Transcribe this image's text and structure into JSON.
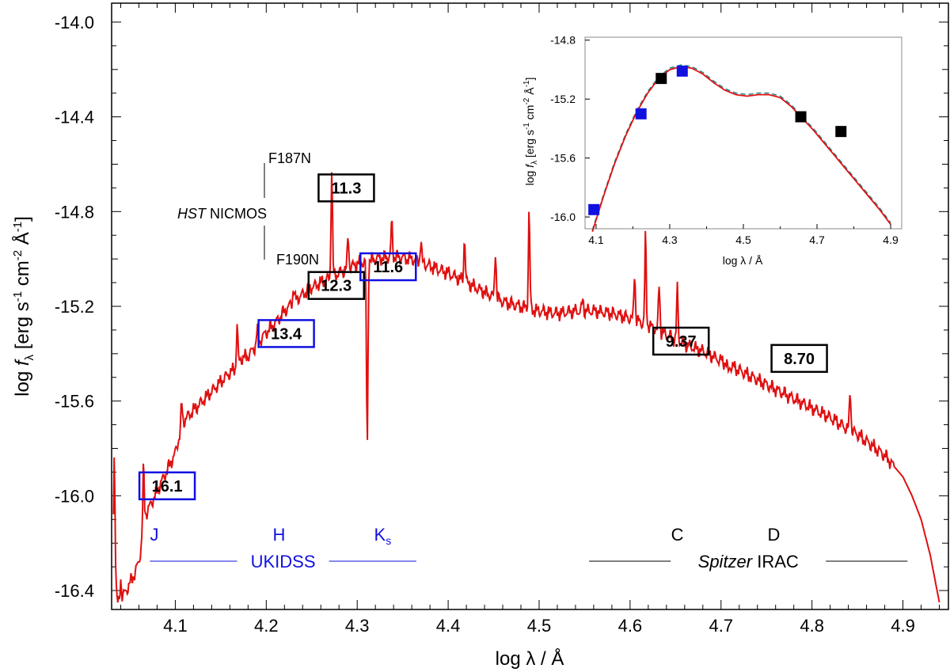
{
  "chart_data": {
    "type": "line",
    "title": "",
    "xlabel": "log λ / Å",
    "ylabel": "log fλ [erg s⁻¹ cm⁻² Å⁻¹]",
    "ylabel_parts": {
      "a": "log ",
      "b": "f",
      "c": "λ",
      "d": " [erg s",
      "e": "-1",
      "f": " cm",
      "g": "-2",
      "h": " Å",
      "i": "-1",
      "j": "]"
    },
    "xlim": [
      4.03,
      4.95
    ],
    "ylim": [
      -16.48,
      -13.92
    ],
    "x_ticks": [
      "4.1",
      "4.2",
      "4.3",
      "4.4",
      "4.5",
      "4.6",
      "4.7",
      "4.8",
      "4.9"
    ],
    "x_tick_values": [
      4.1,
      4.2,
      4.3,
      4.4,
      4.5,
      4.6,
      4.7,
      4.8,
      4.9
    ],
    "y_ticks": [
      "-14.0",
      "-14.4",
      "-14.8",
      "-15.2",
      "-15.6",
      "-16.0",
      "-16.4"
    ],
    "y_tick_values": [
      -14.0,
      -14.4,
      -14.8,
      -15.2,
      -15.6,
      -16.0,
      -16.4
    ],
    "colors": {
      "model": "#e01010",
      "ukidss": "#1010e0",
      "irac": "#000000",
      "dash": "#2a8a8a"
    },
    "series": [
      {
        "name": "model spectrum",
        "x": [
          4.032,
          4.035,
          4.037,
          4.039,
          4.041,
          4.043,
          4.046,
          4.05,
          4.055,
          4.06,
          4.063,
          4.065,
          4.067,
          4.07,
          4.075,
          4.08,
          4.09,
          4.1,
          4.105,
          4.107,
          4.11,
          4.12,
          4.13,
          4.14,
          4.15,
          4.16,
          4.168,
          4.17,
          4.172,
          4.18,
          4.19,
          4.2,
          4.21,
          4.22,
          4.23,
          4.24,
          4.25,
          4.26,
          4.27,
          4.28,
          4.29,
          4.3,
          4.32,
          4.34,
          4.36,
          4.38,
          4.4,
          4.42,
          4.44,
          4.46,
          4.48,
          4.5,
          4.52,
          4.54,
          4.56,
          4.58,
          4.6,
          4.62,
          4.64,
          4.66,
          4.68,
          4.7,
          4.72,
          4.74,
          4.76,
          4.78,
          4.8,
          4.82,
          4.84,
          4.85,
          4.86,
          4.88,
          4.9,
          4.91,
          4.92,
          4.93,
          4.94
        ],
        "y": [
          -16.3,
          -16.4,
          -16.46,
          -16.45,
          -16.44,
          -16.42,
          -16.4,
          -16.37,
          -16.33,
          -16.28,
          -16.2,
          -16.12,
          -16.08,
          -16.06,
          -16.02,
          -15.98,
          -15.9,
          -15.82,
          -15.74,
          -15.72,
          -15.68,
          -15.64,
          -15.6,
          -15.56,
          -15.52,
          -15.48,
          -15.46,
          -15.44,
          -15.42,
          -15.41,
          -15.36,
          -15.31,
          -15.27,
          -15.22,
          -15.18,
          -15.15,
          -15.12,
          -15.1,
          -15.08,
          -15.06,
          -15.04,
          -15.02,
          -15.0,
          -14.99,
          -15.0,
          -15.03,
          -15.06,
          -15.1,
          -15.14,
          -15.18,
          -15.2,
          -15.22,
          -15.23,
          -15.22,
          -15.22,
          -15.23,
          -15.25,
          -15.28,
          -15.32,
          -15.36,
          -15.39,
          -15.43,
          -15.47,
          -15.51,
          -15.55,
          -15.59,
          -15.63,
          -15.67,
          -15.72,
          -15.74,
          -15.77,
          -15.83,
          -15.92,
          -16.0,
          -16.1,
          -16.25,
          -16.45
        ]
      }
    ],
    "emission_lines": [
      {
        "x": 4.033,
        "peak": -15.82
      },
      {
        "x": 4.04,
        "peak": -16.35
      },
      {
        "x": 4.065,
        "peak": -15.88
      },
      {
        "x": 4.107,
        "peak": -15.61
      },
      {
        "x": 4.168,
        "peak": -15.28
      },
      {
        "x": 4.19,
        "peak": -15.3
      },
      {
        "x": 4.23,
        "peak": -15.12
      },
      {
        "x": 4.272,
        "peak": -14.62
      },
      {
        "x": 4.29,
        "peak": -14.9
      },
      {
        "x": 4.338,
        "peak": -14.84
      },
      {
        "x": 4.37,
        "peak": -14.92
      },
      {
        "x": 4.418,
        "peak": -14.9
      },
      {
        "x": 4.452,
        "peak": -14.96
      },
      {
        "x": 4.489,
        "peak": -14.79
      },
      {
        "x": 4.548,
        "peak": -15.17
      },
      {
        "x": 4.605,
        "peak": -15.05
      },
      {
        "x": 4.617,
        "peak": -14.9
      },
      {
        "x": 4.632,
        "peak": -15.1
      },
      {
        "x": 4.652,
        "peak": -15.12
      },
      {
        "x": 4.708,
        "peak": -15.48
      },
      {
        "x": 4.842,
        "peak": -15.55
      }
    ],
    "absorption_lines": [
      {
        "x": 4.311,
        "trough": -15.8
      }
    ],
    "photometry": [
      {
        "label": "16.1",
        "x": 4.091,
        "y": -15.958,
        "color": "#1010e0"
      },
      {
        "label": "13.4",
        "x": 4.222,
        "y": -15.315,
        "color": "#1010e0"
      },
      {
        "label": "11.3",
        "x": 4.288,
        "y": -14.7,
        "color": "#000000"
      },
      {
        "label": "12.3",
        "x": 4.277,
        "y": -15.112,
        "color": "#000000"
      },
      {
        "label": "11.6",
        "x": 4.334,
        "y": -15.033,
        "color": "#1010e0"
      },
      {
        "label": "9.37",
        "x": 4.656,
        "y": -15.347,
        "color": "#000000"
      },
      {
        "label": "8.70",
        "x": 4.786,
        "y": -15.42,
        "color": "#000000"
      }
    ],
    "bands": [
      {
        "label": "J",
        "x": 4.077,
        "color": "#1010e0"
      },
      {
        "label": "H",
        "x": 4.214,
        "color": "#1010e0"
      },
      {
        "label": "K",
        "sub": "s",
        "x": 4.328,
        "color": "#1010e0"
      },
      {
        "label": "C",
        "x": 4.652,
        "color": "#000000"
      },
      {
        "label": "D",
        "x": 4.758,
        "color": "#000000"
      }
    ],
    "survey_labels": [
      {
        "label": "UKIDSS",
        "x_start": 4.072,
        "x_end": 4.365,
        "color": "#1010e0"
      },
      {
        "label": "Spitzer",
        "label2": " IRAC",
        "x_start": 4.555,
        "x_end": 4.905,
        "color": "#000000"
      }
    ],
    "annotations": {
      "f187n": "F187N",
      "f190n": "F190N",
      "hst": "HST",
      "nicmos": " NICMOS"
    },
    "inset": {
      "xlabel": "log λ / Å",
      "ylabel_parts": {
        "a": "log ",
        "b": "f",
        "c": "λ",
        "d": " [erg s",
        "e": "-1",
        "f": " cm",
        "g": "-2",
        "h": " Å",
        "i": "-1",
        "j": "]"
      },
      "xlim": [
        4.07,
        4.93
      ],
      "ylim": [
        -16.08,
        -14.78
      ],
      "x_ticks": [
        "4.1",
        "4.3",
        "4.5",
        "4.7",
        "4.9"
      ],
      "x_tick_values": [
        4.1,
        4.3,
        4.5,
        4.7,
        4.9
      ],
      "y_ticks": [
        "-14.8",
        "-15.2",
        "-15.6",
        "-16.0"
      ],
      "y_tick_values": [
        -14.8,
        -15.2,
        -15.6,
        -16.0
      ],
      "model": {
        "x": [
          4.09,
          4.12,
          4.15,
          4.18,
          4.21,
          4.24,
          4.27,
          4.3,
          4.33,
          4.36,
          4.39,
          4.42,
          4.45,
          4.48,
          4.51,
          4.54,
          4.57,
          4.6,
          4.63,
          4.66,
          4.69,
          4.72,
          4.75,
          4.78,
          4.81,
          4.84,
          4.87,
          4.9
        ],
        "y": [
          -16.1,
          -15.86,
          -15.64,
          -15.45,
          -15.29,
          -15.16,
          -15.06,
          -15.0,
          -14.98,
          -14.99,
          -15.03,
          -15.09,
          -15.14,
          -15.17,
          -15.18,
          -15.17,
          -15.17,
          -15.19,
          -15.25,
          -15.33,
          -15.41,
          -15.5,
          -15.59,
          -15.68,
          -15.77,
          -15.86,
          -15.95,
          -16.05
        ]
      },
      "points": [
        {
          "x": 4.094,
          "y": -15.95,
          "color": "#1010e0"
        },
        {
          "x": 4.222,
          "y": -15.3,
          "color": "#1010e0"
        },
        {
          "x": 4.277,
          "y": -15.06,
          "color": "#000000"
        },
        {
          "x": 4.334,
          "y": -15.01,
          "color": "#1010e0"
        },
        {
          "x": 4.656,
          "y": -15.32,
          "color": "#000000"
        },
        {
          "x": 4.765,
          "y": -15.42,
          "color": "#000000"
        }
      ]
    }
  }
}
